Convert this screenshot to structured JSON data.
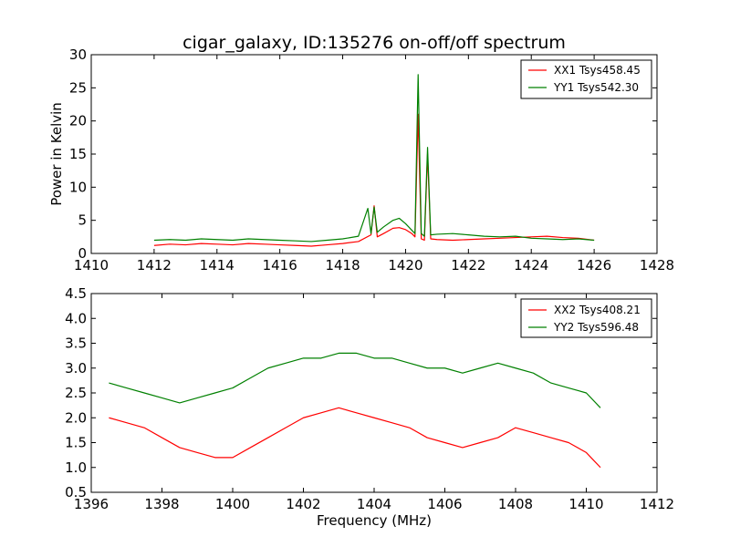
{
  "chart_data": [
    {
      "type": "line",
      "title": "cigar_galaxy, ID:135276 on-off/off spectrum",
      "xlabel": "",
      "ylabel": "Power in Kelvin",
      "xlim": [
        1410,
        1428
      ],
      "ylim": [
        0,
        30
      ],
      "xticks": [
        1410,
        1412,
        1414,
        1416,
        1418,
        1420,
        1422,
        1424,
        1426,
        1428
      ],
      "yticks": [
        0,
        5,
        10,
        15,
        20,
        25,
        30
      ],
      "grid": false,
      "legend_position": "top-right",
      "series": [
        {
          "name": "XX1 Tsys458.45",
          "color": "#ff0000",
          "x": [
            1412.0,
            1412.5,
            1413.0,
            1413.5,
            1414.0,
            1414.5,
            1415.0,
            1415.5,
            1416.0,
            1416.5,
            1417.0,
            1417.5,
            1418.0,
            1418.5,
            1418.9,
            1419.0,
            1419.1,
            1419.3,
            1419.6,
            1419.8,
            1420.0,
            1420.2,
            1420.3,
            1420.4,
            1420.5,
            1420.6,
            1420.7,
            1420.8,
            1421.0,
            1421.5,
            1422.0,
            1422.5,
            1423.0,
            1423.5,
            1424.0,
            1424.5,
            1425.0,
            1425.5,
            1426.0
          ],
          "y": [
            1.2,
            1.4,
            1.3,
            1.5,
            1.4,
            1.3,
            1.5,
            1.4,
            1.3,
            1.2,
            1.1,
            1.3,
            1.5,
            1.8,
            2.8,
            7.2,
            2.5,
            3.0,
            3.8,
            3.9,
            3.6,
            3.0,
            2.5,
            21.0,
            2.2,
            2.0,
            15.0,
            2.2,
            2.1,
            2.0,
            2.1,
            2.2,
            2.3,
            2.4,
            2.5,
            2.6,
            2.4,
            2.3,
            2.0
          ]
        },
        {
          "name": "YY1 Tsys542.30",
          "color": "#008000",
          "x": [
            1412.0,
            1412.5,
            1413.0,
            1413.5,
            1414.0,
            1414.5,
            1415.0,
            1415.5,
            1416.0,
            1416.5,
            1417.0,
            1417.5,
            1418.0,
            1418.5,
            1418.8,
            1418.9,
            1419.0,
            1419.1,
            1419.3,
            1419.6,
            1419.8,
            1420.0,
            1420.2,
            1420.3,
            1420.4,
            1420.5,
            1420.6,
            1420.7,
            1420.8,
            1421.0,
            1421.5,
            1422.0,
            1422.5,
            1423.0,
            1423.5,
            1424.0,
            1424.5,
            1425.0,
            1425.5,
            1426.0
          ],
          "y": [
            2.0,
            2.1,
            2.0,
            2.2,
            2.1,
            2.0,
            2.2,
            2.1,
            2.0,
            1.9,
            1.8,
            2.0,
            2.2,
            2.6,
            6.8,
            3.0,
            7.0,
            3.2,
            4.0,
            5.0,
            5.3,
            4.5,
            3.5,
            3.0,
            27.0,
            3.0,
            2.6,
            16.0,
            2.8,
            2.9,
            3.0,
            2.8,
            2.6,
            2.5,
            2.6,
            2.3,
            2.2,
            2.1,
            2.2,
            2.0
          ]
        }
      ]
    },
    {
      "type": "line",
      "title": "",
      "xlabel": "Frequency (MHz)",
      "ylabel": "",
      "xlim": [
        1396,
        1412
      ],
      "ylim": [
        0.5,
        4.5
      ],
      "xticks": [
        1396,
        1398,
        1400,
        1402,
        1404,
        1406,
        1408,
        1410,
        1412
      ],
      "yticks": [
        0.5,
        1.0,
        1.5,
        2.0,
        2.5,
        3.0,
        3.5,
        4.0,
        4.5
      ],
      "grid": false,
      "legend_position": "top-right",
      "series": [
        {
          "name": "XX2 Tsys408.21",
          "color": "#ff0000",
          "x": [
            1396.5,
            1397.0,
            1397.5,
            1398.0,
            1398.5,
            1399.0,
            1399.5,
            1400.0,
            1400.5,
            1401.0,
            1401.5,
            1402.0,
            1402.5,
            1403.0,
            1403.5,
            1404.0,
            1404.5,
            1405.0,
            1405.5,
            1406.0,
            1406.5,
            1407.0,
            1407.5,
            1408.0,
            1408.5,
            1409.0,
            1409.5,
            1410.0,
            1410.4
          ],
          "y": [
            2.0,
            1.9,
            1.8,
            1.6,
            1.4,
            1.3,
            1.2,
            1.2,
            1.4,
            1.6,
            1.8,
            2.0,
            2.1,
            2.2,
            2.1,
            2.0,
            1.9,
            1.8,
            1.6,
            1.5,
            1.4,
            1.5,
            1.6,
            1.8,
            1.7,
            1.6,
            1.5,
            1.3,
            1.0
          ]
        },
        {
          "name": "YY2 Tsys596.48",
          "color": "#008000",
          "x": [
            1396.5,
            1397.0,
            1397.5,
            1398.0,
            1398.5,
            1399.0,
            1399.5,
            1400.0,
            1400.5,
            1401.0,
            1401.5,
            1402.0,
            1402.5,
            1403.0,
            1403.5,
            1404.0,
            1404.5,
            1405.0,
            1405.5,
            1406.0,
            1406.5,
            1407.0,
            1407.5,
            1408.0,
            1408.5,
            1409.0,
            1409.5,
            1410.0,
            1410.4
          ],
          "y": [
            2.7,
            2.6,
            2.5,
            2.4,
            2.3,
            2.4,
            2.5,
            2.6,
            2.8,
            3.0,
            3.1,
            3.2,
            3.2,
            3.3,
            3.3,
            3.2,
            3.2,
            3.1,
            3.0,
            3.0,
            2.9,
            3.0,
            3.1,
            3.0,
            2.9,
            2.7,
            2.6,
            2.5,
            2.2
          ]
        }
      ]
    }
  ]
}
